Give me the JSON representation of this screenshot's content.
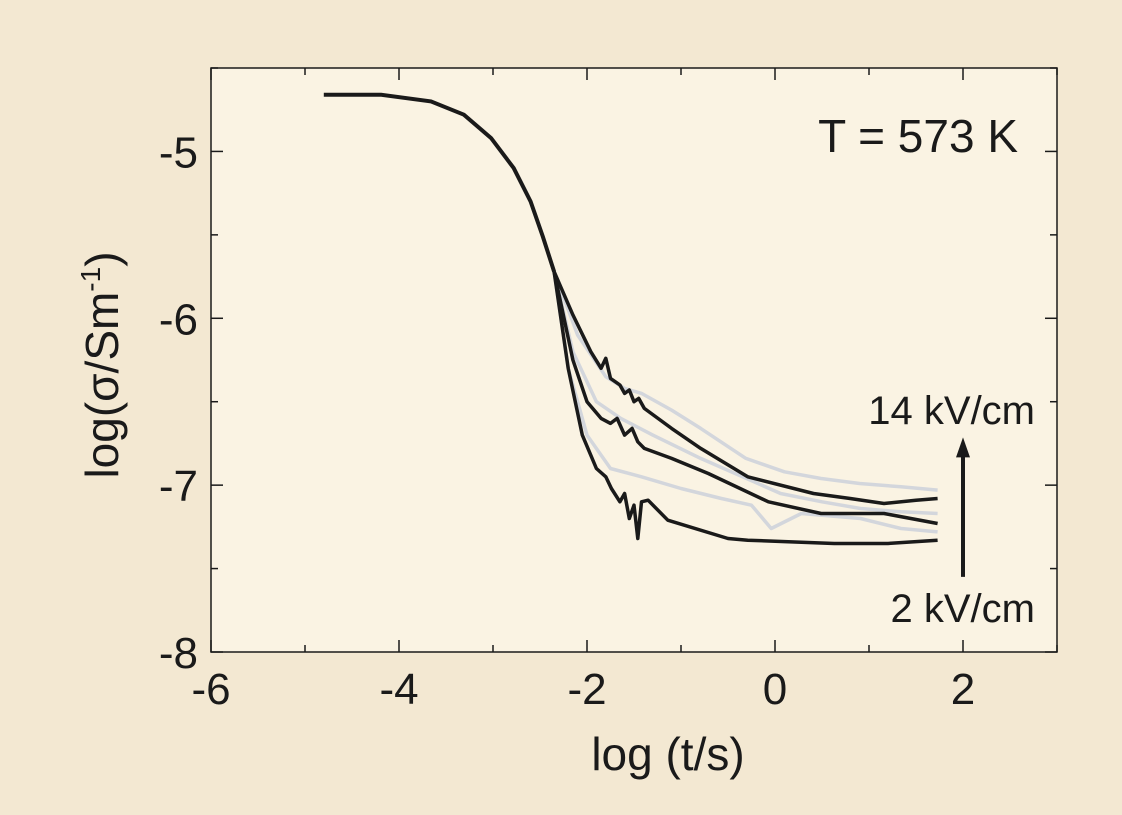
{
  "chart_data": {
    "type": "line",
    "title": "",
    "annotation": "T = 573 K",
    "xlabel": "log (t/s)",
    "ylabel": "log(σ/Sm",
    "ylabel_sup": "-1",
    "ylabel_close": ")",
    "xlim": [
      -6,
      3
    ],
    "ylim": [
      -8,
      -4.5
    ],
    "xticks": [
      -6,
      -4,
      -2,
      0,
      2
    ],
    "xtick_labels": [
      "-6",
      "-4",
      "-2",
      "0",
      "2"
    ],
    "yticks": [
      -5,
      -6,
      -7,
      -8
    ],
    "ytick_labels": [
      "-5",
      "-6",
      "-7",
      "-8"
    ],
    "field_arrow": {
      "top_label": "14 kV/cm",
      "bottom_label": "2 kV/cm",
      "x": 2.0,
      "y_from": -7.55,
      "y_to": -6.75
    },
    "colors": {
      "background": "#F3E8D2",
      "plot": "#FAF3E3",
      "black": "#1a1a1a",
      "gray": "#D3D6DC"
    },
    "common": [
      [
        -4.8,
        -4.66
      ],
      [
        -4.19,
        -4.66
      ],
      [
        -3.66,
        -4.7
      ],
      [
        -3.31,
        -4.78
      ],
      [
        -3.02,
        -4.92
      ],
      [
        -2.78,
        -5.1
      ],
      [
        -2.6,
        -5.3
      ],
      [
        -2.47,
        -5.51
      ],
      [
        -2.35,
        -5.72
      ]
    ],
    "series": [
      {
        "name": "gray-1",
        "color": "gray",
        "values": [
          [
            -2.35,
            -5.72
          ],
          [
            -2.1,
            -6.1
          ],
          [
            -1.8,
            -6.35
          ],
          [
            -1.6,
            -6.42
          ],
          [
            -1.42,
            -6.45
          ],
          [
            -1.1,
            -6.55
          ],
          [
            -0.79,
            -6.66
          ],
          [
            -0.31,
            -6.84
          ],
          [
            0.1,
            -6.92
          ],
          [
            0.49,
            -6.96
          ],
          [
            0.9,
            -6.99
          ],
          [
            1.34,
            -7.01
          ],
          [
            1.73,
            -7.03
          ]
        ]
      },
      {
        "name": "gray-2",
        "color": "gray",
        "values": [
          [
            -2.35,
            -5.72
          ],
          [
            -2.15,
            -6.2
          ],
          [
            -1.9,
            -6.5
          ],
          [
            -1.64,
            -6.6
          ],
          [
            -1.3,
            -6.7
          ],
          [
            -0.79,
            -6.84
          ],
          [
            0.06,
            -7.05
          ],
          [
            0.5,
            -7.1
          ],
          [
            0.91,
            -7.14
          ],
          [
            1.34,
            -7.16
          ],
          [
            1.73,
            -7.17
          ]
        ]
      },
      {
        "name": "gray-3",
        "color": "gray",
        "values": [
          [
            -2.35,
            -5.72
          ],
          [
            -2.2,
            -6.3
          ],
          [
            -2.0,
            -6.7
          ],
          [
            -1.75,
            -6.9
          ],
          [
            -1.42,
            -6.95
          ],
          [
            -1.0,
            -7.02
          ],
          [
            -0.57,
            -7.08
          ],
          [
            -0.25,
            -7.12
          ],
          [
            -0.04,
            -7.26
          ],
          [
            0.28,
            -7.17
          ],
          [
            0.91,
            -7.2
          ],
          [
            1.34,
            -7.26
          ],
          [
            1.73,
            -7.28
          ]
        ]
      },
      {
        "name": "black-14kV",
        "color": "black",
        "values": [
          [
            -2.35,
            -5.72
          ],
          [
            -2.15,
            -5.98
          ],
          [
            -1.96,
            -6.2
          ],
          [
            -1.85,
            -6.3
          ],
          [
            -1.8,
            -6.24
          ],
          [
            -1.75,
            -6.36
          ],
          [
            -1.65,
            -6.4
          ],
          [
            -1.6,
            -6.45
          ],
          [
            -1.55,
            -6.43
          ],
          [
            -1.5,
            -6.5
          ],
          [
            -1.45,
            -6.48
          ],
          [
            -1.39,
            -6.54
          ],
          [
            -1.1,
            -6.66
          ],
          [
            -0.79,
            -6.78
          ],
          [
            -0.29,
            -6.95
          ],
          [
            0.41,
            -7.05
          ],
          [
            0.8,
            -7.08
          ],
          [
            1.16,
            -7.11
          ],
          [
            1.5,
            -7.09
          ],
          [
            1.73,
            -7.08
          ]
        ]
      },
      {
        "name": "black-mid",
        "color": "black",
        "values": [
          [
            -2.35,
            -5.72
          ],
          [
            -2.15,
            -6.25
          ],
          [
            -2.0,
            -6.5
          ],
          [
            -1.85,
            -6.6
          ],
          [
            -1.75,
            -6.63
          ],
          [
            -1.68,
            -6.6
          ],
          [
            -1.6,
            -6.7
          ],
          [
            -1.52,
            -6.66
          ],
          [
            -1.46,
            -6.74
          ],
          [
            -1.39,
            -6.78
          ],
          [
            -1.1,
            -6.84
          ],
          [
            -0.71,
            -6.93
          ],
          [
            -0.07,
            -7.1
          ],
          [
            0.49,
            -7.17
          ],
          [
            1.16,
            -7.17
          ],
          [
            1.73,
            -7.23
          ]
        ]
      },
      {
        "name": "black-2kV",
        "color": "black",
        "values": [
          [
            -2.35,
            -5.72
          ],
          [
            -2.2,
            -6.3
          ],
          [
            -2.05,
            -6.7
          ],
          [
            -1.9,
            -6.9
          ],
          [
            -1.8,
            -6.95
          ],
          [
            -1.74,
            -7.02
          ],
          [
            -1.65,
            -7.1
          ],
          [
            -1.6,
            -7.05
          ],
          [
            -1.55,
            -7.2
          ],
          [
            -1.5,
            -7.12
          ],
          [
            -1.46,
            -7.32
          ],
          [
            -1.42,
            -7.1
          ],
          [
            -1.35,
            -7.09
          ],
          [
            -1.14,
            -7.21
          ],
          [
            -0.5,
            -7.32
          ],
          [
            -0.29,
            -7.33
          ],
          [
            0.63,
            -7.35
          ],
          [
            1.2,
            -7.35
          ],
          [
            1.73,
            -7.33
          ]
        ]
      }
    ]
  }
}
